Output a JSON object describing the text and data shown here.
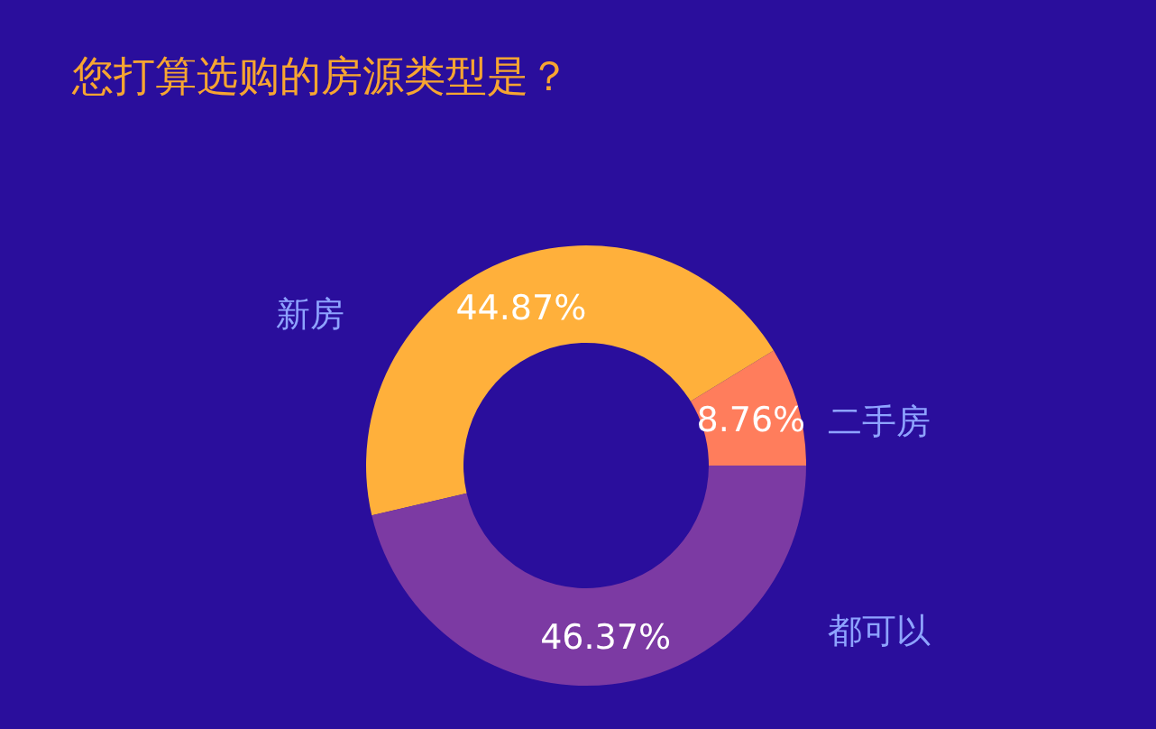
{
  "chart_data": {
    "type": "donut",
    "title": "您打算选购的房源类型是？",
    "categories": [
      "二手房",
      "新房",
      "都可以"
    ],
    "values": [
      8.76,
      44.87,
      46.37
    ],
    "value_labels": [
      "8.76%",
      "44.87%",
      "46.37%"
    ],
    "colors": [
      "#ff7d5c",
      "#ffb03b",
      "#7c3aa3"
    ],
    "legend": false
  }
}
